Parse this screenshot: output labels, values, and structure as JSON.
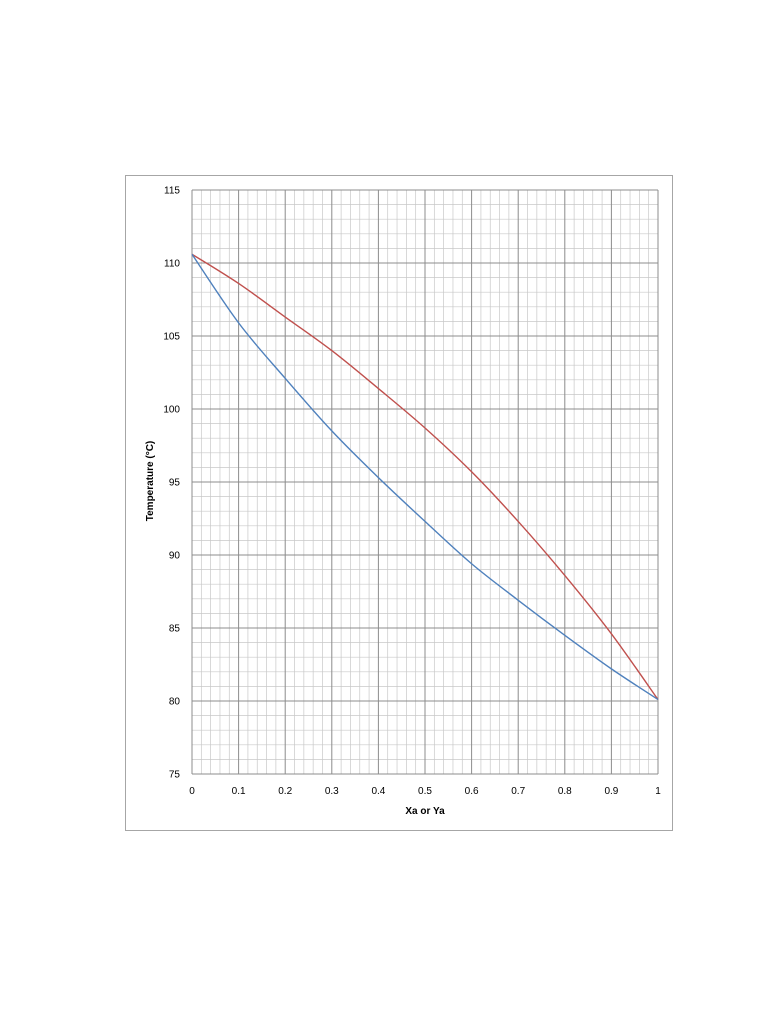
{
  "chart_data": {
    "type": "line",
    "xlabel": "Xa or Ya",
    "ylabel": "Temperature (°C)",
    "xlim": [
      0,
      1
    ],
    "ylim": [
      75,
      115
    ],
    "x_ticks": [
      "0",
      "0.1",
      "0.2",
      "0.3",
      "0.4",
      "0.5",
      "0.6",
      "0.7",
      "0.8",
      "0.9",
      "1"
    ],
    "y_ticks": [
      "75",
      "80",
      "85",
      "90",
      "95",
      "100",
      "105",
      "110",
      "115"
    ],
    "grid": true,
    "series": [
      {
        "color": "#c0504d",
        "x": [
          0,
          0.1,
          0.2,
          0.3,
          0.4,
          0.5,
          0.6,
          0.7,
          0.8,
          0.9,
          1.0
        ],
        "y": [
          110.6,
          108.6,
          106.3,
          104.0,
          101.4,
          98.7,
          95.7,
          92.3,
          88.6,
          84.6,
          80.1
        ]
      },
      {
        "color": "#4f81bd",
        "x": [
          0,
          0.1,
          0.2,
          0.3,
          0.4,
          0.5,
          0.6,
          0.7,
          0.8,
          0.9,
          1.0
        ],
        "y": [
          110.6,
          105.9,
          102.1,
          98.5,
          95.3,
          92.3,
          89.4,
          86.9,
          84.5,
          82.2,
          80.1
        ]
      }
    ]
  }
}
